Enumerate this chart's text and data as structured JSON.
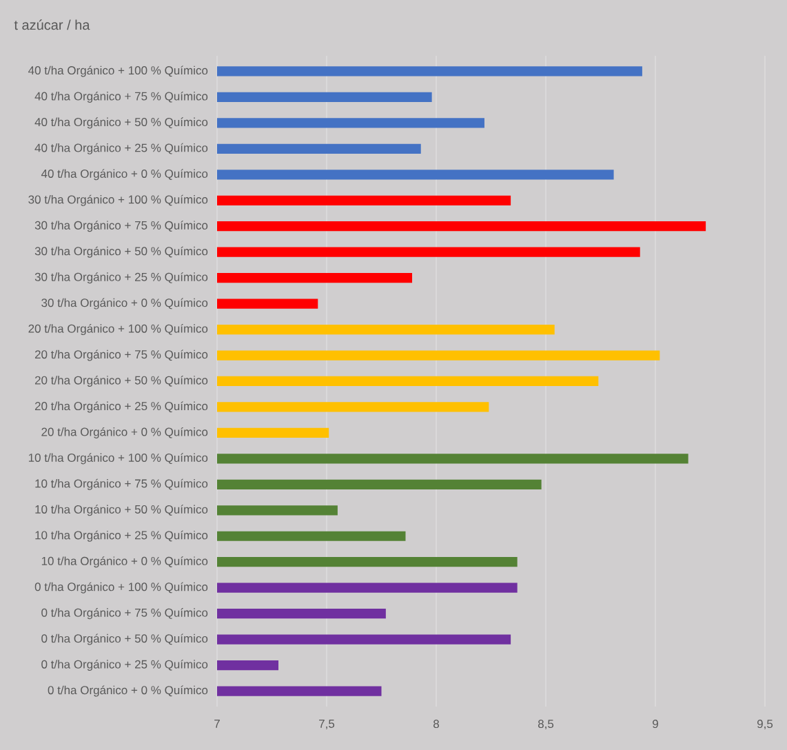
{
  "chart_data": {
    "type": "bar",
    "orientation": "horizontal",
    "title": "t azúcar / ha",
    "categories": [
      "40 t/ha Orgánico + 100 % Químico",
      "40 t/ha Orgánico + 75 % Químico",
      "40 t/ha Orgánico + 50 % Químico",
      "40 t/ha Orgánico + 25 % Químico",
      "40 t/ha Orgánico + 0 % Químico",
      "30 t/ha Orgánico + 100 % Químico",
      "30 t/ha Orgánico + 75 % Químico",
      "30 t/ha Orgánico + 50 % Químico",
      "30 t/ha Orgánico + 25 % Químico",
      "30 t/ha Orgánico + 0 % Químico",
      "20 t/ha Orgánico + 100 % Químico",
      "20 t/ha Orgánico + 75 % Químico",
      "20 t/ha Orgánico + 50 % Químico",
      "20 t/ha Orgánico + 25 % Químico",
      "20 t/ha Orgánico + 0 % Químico",
      "10 t/ha Orgánico + 100 % Químico",
      "10 t/ha Orgánico + 75 % Químico",
      "10 t/ha Orgánico + 50 % Químico",
      "10 t/ha Orgánico + 25 % Químico",
      "10 t/ha Orgánico + 0 % Químico",
      "0 t/ha Orgánico + 100 % Químico",
      "0 t/ha Orgánico + 75 % Químico",
      "0 t/ha Orgánico + 50 % Químico",
      "0 t/ha Orgánico + 25 % Químico",
      "0 t/ha Orgánico + 0 % Químico"
    ],
    "values": [
      8.94,
      7.98,
      8.22,
      7.93,
      8.81,
      8.34,
      9.23,
      8.93,
      7.89,
      7.46,
      8.54,
      9.02,
      8.74,
      8.24,
      7.51,
      9.15,
      8.48,
      7.55,
      7.86,
      8.37,
      8.37,
      7.77,
      8.34,
      7.28,
      7.75
    ],
    "colors": [
      "#4472c4",
      "#4472c4",
      "#4472c4",
      "#4472c4",
      "#4472c4",
      "#ff0000",
      "#ff0000",
      "#ff0000",
      "#ff0000",
      "#ff0000",
      "#ffc000",
      "#ffc000",
      "#ffc000",
      "#ffc000",
      "#ffc000",
      "#548235",
      "#548235",
      "#548235",
      "#548235",
      "#548235",
      "#7030a0",
      "#7030a0",
      "#7030a0",
      "#7030a0",
      "#7030a0"
    ],
    "xlim": [
      7,
      9.5
    ],
    "xticks": [
      7,
      {
        "value": 7.5,
        "label": "7,5"
      },
      8,
      {
        "value": 8.5,
        "label": "8,5"
      },
      9,
      {
        "value": 9.5,
        "label": "9,5"
      }
    ],
    "grid": "x"
  }
}
